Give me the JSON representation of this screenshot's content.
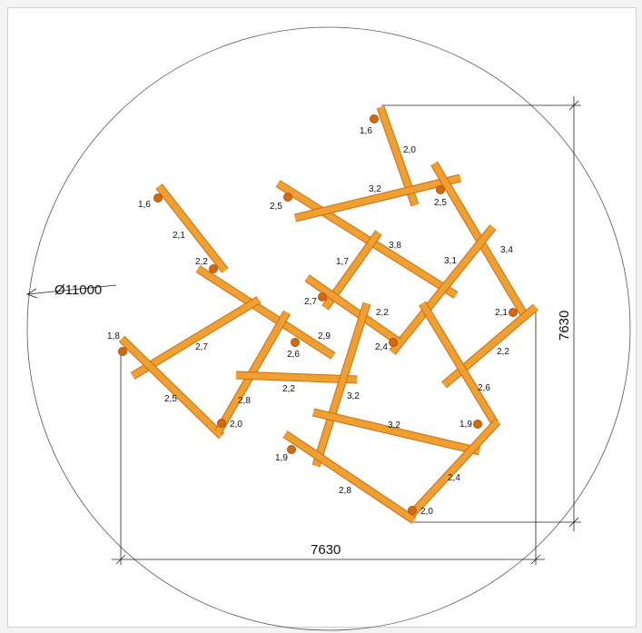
{
  "diameter_label": "Ø11000",
  "dim_horizontal": "7630",
  "dim_vertical": "7630",
  "colors": {
    "beam": "#f0a030",
    "beam_edge": "#c86e10",
    "post": "#d46a10",
    "lines": "#222222"
  },
  "post_labels": [
    "1,6",
    "1,6",
    "2,5",
    "2,5",
    "2,2",
    "2,7",
    "2,1",
    "1,8",
    "2,6",
    "2,4",
    "2,0",
    "1,9",
    "1,9",
    "2,0"
  ],
  "beam_labels": [
    "2,0",
    "3,2",
    "2,1",
    "3,8",
    "1,7",
    "3,4",
    "3,1",
    "2,2",
    "2,9",
    "2,7",
    "2,2",
    "2,5",
    "2,8",
    "2,2",
    "3,2",
    "2,6",
    "3,2",
    "2,4",
    "2,8"
  ]
}
